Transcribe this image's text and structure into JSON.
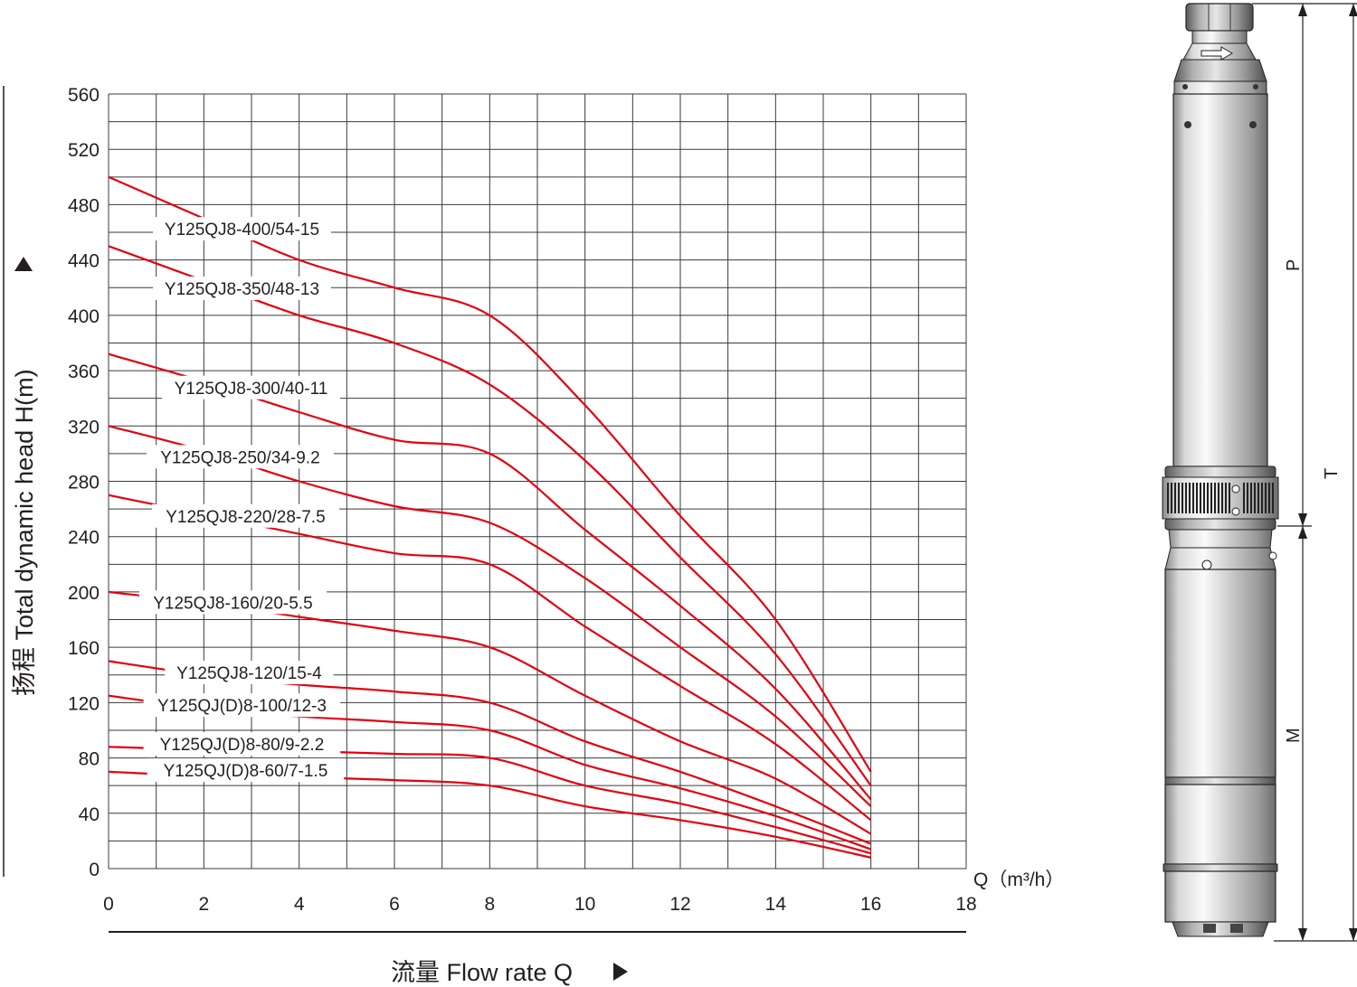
{
  "chart_data": {
    "type": "line",
    "ylabel": "扬程 Total dynamic head H(m)",
    "xlabel": "流量 Flow rate Q",
    "x_unit_label": "Q（m³/h）",
    "xlim": [
      0,
      18
    ],
    "ylim": [
      0,
      560
    ],
    "x_ticks": [
      0,
      2,
      4,
      6,
      8,
      10,
      12,
      14,
      16,
      18
    ],
    "y_ticks": [
      0,
      40,
      80,
      120,
      160,
      200,
      240,
      280,
      320,
      360,
      400,
      440,
      480,
      520,
      560
    ],
    "grid": true,
    "line_color": "#e3000f",
    "series": [
      {
        "name": "Y125QJ8-400/54-15",
        "x": [
          0,
          2,
          4,
          6,
          8,
          10,
          12,
          14,
          16
        ],
        "y": [
          500,
          470,
          440,
          420,
          400,
          335,
          255,
          180,
          70
        ]
      },
      {
        "name": "Y125QJ8-350/48-13",
        "x": [
          0,
          2,
          4,
          6,
          8,
          10,
          12,
          14,
          16
        ],
        "y": [
          450,
          425,
          400,
          380,
          350,
          295,
          225,
          155,
          60
        ]
      },
      {
        "name": "Y125QJ8-300/40-11",
        "x": [
          0,
          2,
          4,
          6,
          8,
          10,
          12,
          14,
          16
        ],
        "y": [
          372,
          352,
          330,
          310,
          300,
          245,
          190,
          130,
          50
        ]
      },
      {
        "name": "Y125QJ8-250/34-9.2",
        "x": [
          0,
          2,
          4,
          6,
          8,
          10,
          12,
          14,
          16
        ],
        "y": [
          320,
          302,
          280,
          262,
          250,
          210,
          160,
          110,
          45
        ]
      },
      {
        "name": "Y125QJ8-220/28-7.5",
        "x": [
          0,
          2,
          4,
          6,
          8,
          10,
          12,
          14,
          16
        ],
        "y": [
          270,
          256,
          242,
          228,
          220,
          175,
          132,
          90,
          35
        ]
      },
      {
        "name": "Y125QJ8-160/20-5.5",
        "x": [
          0,
          2,
          4,
          6,
          8,
          10,
          12,
          14,
          16
        ],
        "y": [
          200,
          192,
          182,
          172,
          160,
          125,
          92,
          65,
          25
        ]
      },
      {
        "name": "Y125QJ8-120/15-4",
        "x": [
          0,
          2,
          4,
          6,
          8,
          10,
          12,
          14,
          16
        ],
        "y": [
          150,
          140,
          133,
          128,
          120,
          92,
          70,
          45,
          18
        ]
      },
      {
        "name": "Y125QJ(D)8-100/12-3",
        "x": [
          0,
          2,
          4,
          6,
          8,
          10,
          12,
          14,
          16
        ],
        "y": [
          125,
          116,
          110,
          106,
          100,
          75,
          58,
          38,
          14
        ]
      },
      {
        "name": "Y125QJ(D)8-80/9-2.2",
        "x": [
          0,
          2,
          4,
          6,
          8,
          10,
          12,
          14,
          16
        ],
        "y": [
          88,
          86,
          85,
          83,
          80,
          60,
          47,
          30,
          11
        ]
      },
      {
        "name": "Y125QJ(D)8-60/7-1.5",
        "x": [
          0,
          2,
          4,
          6,
          8,
          10,
          12,
          14,
          16
        ],
        "y": [
          70,
          67,
          66,
          64,
          60,
          45,
          35,
          23,
          8
        ]
      }
    ]
  },
  "pump_drawing": {
    "dimension_labels": [
      "P",
      "T",
      "M"
    ]
  }
}
